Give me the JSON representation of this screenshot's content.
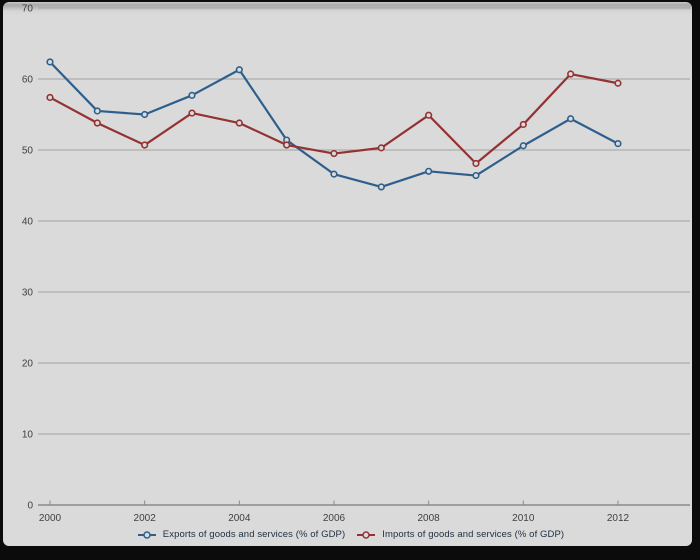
{
  "chart_data": {
    "type": "line",
    "title": "",
    "x": [
      2000,
      2001,
      2002,
      2003,
      2004,
      2005,
      2006,
      2007,
      2008,
      2009,
      2010,
      2011,
      2012
    ],
    "x_tick_labels": [
      "2000",
      "2002",
      "2004",
      "2006",
      "2008",
      "2010",
      "2012"
    ],
    "y_ticks": [
      0,
      10,
      20,
      30,
      40,
      50,
      60,
      70
    ],
    "ylim": [
      0,
      70
    ],
    "grid": "horizontal",
    "legend_position": "bottom",
    "series": [
      {
        "name": "Exports of goods and services (% of GDP)",
        "color": "#2e5f8c",
        "values": [
          62.4,
          55.5,
          55.0,
          57.7,
          61.3,
          51.4,
          46.6,
          44.8,
          47.0,
          46.4,
          50.6,
          54.4,
          50.9
        ]
      },
      {
        "name": "Imports of goods and services (% of GDP)",
        "color": "#943233",
        "values": [
          57.4,
          53.8,
          50.7,
          55.2,
          53.8,
          50.7,
          49.5,
          50.3,
          54.9,
          48.1,
          53.6,
          60.7,
          59.4
        ]
      }
    ]
  },
  "style": {
    "frame_color": "#0b0b0b",
    "plot_background": "#dadada",
    "gridline_color": "#a3a3a3",
    "axis_color": "#8a8a8a",
    "tick_label_color": "#3f3f3f",
    "legend_text_color": "#1d2e40"
  }
}
